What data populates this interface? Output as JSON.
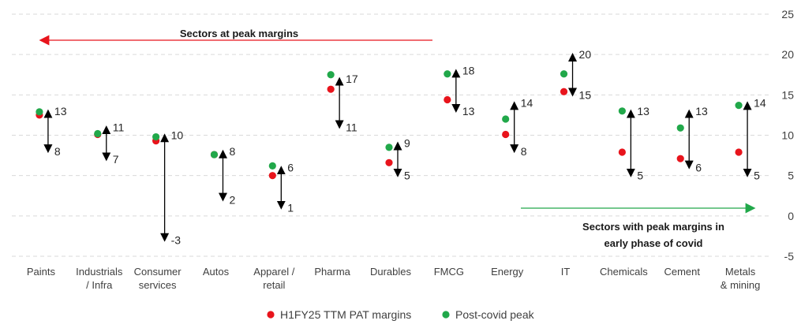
{
  "chart_data": {
    "type": "scatter",
    "title": "",
    "xlabel": "",
    "ylabel": "",
    "ylim": [
      -5,
      25
    ],
    "yticks": [
      -5,
      0,
      5,
      10,
      15,
      20,
      25
    ],
    "grid": true,
    "legend_position": "bottom",
    "categories": [
      [
        "Paints"
      ],
      [
        "Industrials",
        "/ Infra"
      ],
      [
        "Consumer",
        "services"
      ],
      [
        "Autos"
      ],
      [
        "Apparel /",
        "retail"
      ],
      [
        "Pharma"
      ],
      [
        "Durables"
      ],
      [
        "FMCG"
      ],
      [
        "Energy"
      ],
      [
        "IT"
      ],
      [
        "Chemicals"
      ],
      [
        "Cement"
      ],
      [
        "Metals",
        "& mining"
      ]
    ],
    "series": [
      {
        "name": "H1FY25 TTM PAT margins",
        "color": "#e8141c",
        "values": [
          12.5,
          10.1,
          9.3,
          7.6,
          5.0,
          15.7,
          6.6,
          14.4,
          10.1,
          15.4,
          7.9,
          7.1,
          7.9
        ]
      },
      {
        "name": "Post-covid peak",
        "color": "#21a84a",
        "values": [
          12.9,
          10.2,
          9.8,
          7.6,
          6.2,
          17.5,
          8.5,
          17.6,
          12.0,
          17.6,
          13.0,
          10.9,
          13.7
        ]
      }
    ],
    "ranges": [
      {
        "high": 13,
        "low": 8
      },
      {
        "high": 11,
        "low": 7
      },
      {
        "high": 10,
        "low": -3
      },
      {
        "high": 8,
        "low": 2
      },
      {
        "high": 6,
        "low": 1
      },
      {
        "high": 17,
        "low": 11
      },
      {
        "high": 9,
        "low": 5
      },
      {
        "high": 18,
        "low": 13
      },
      {
        "high": 14,
        "low": 8
      },
      {
        "high": 20,
        "low": 15
      },
      {
        "high": 13,
        "low": 5
      },
      {
        "high": 13,
        "low": 6
      },
      {
        "high": 14,
        "low": 5
      }
    ],
    "annotations": [
      {
        "lines": [
          "Sectors at peak margins"
        ],
        "arrow": "left"
      },
      {
        "lines": [
          "Sectors with peak margins in",
          "early phase of covid"
        ],
        "arrow": "right"
      }
    ],
    "colors": {
      "arrow_left": "#e8141c",
      "arrow_right": "#21a84a",
      "range_arrow": "#000000",
      "grid": "#d9d9d9"
    }
  }
}
